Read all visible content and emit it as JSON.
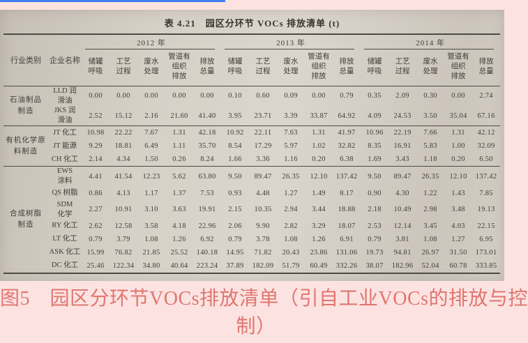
{
  "page": {
    "background_color": "#fce3e2",
    "accent_line_color": "#4080f0",
    "caption": {
      "line1": "图5　园区分环节VOCs排放清单（引自工业VOCs的排放与控",
      "line2": "制）",
      "color": "#e0766f"
    }
  },
  "table": {
    "title": "表 4.21　园区分环节 VOCs 排放清单 (t)",
    "col_industry": "行业类别",
    "col_company": "企业名称",
    "years": [
      "2012 年",
      "2013 年",
      "2014 年"
    ],
    "subheaders": [
      "储罐\n呼吸",
      "工艺\n过程",
      "废水\n处理",
      "管道有\n组织\n排放",
      "排放\n总量"
    ],
    "groups": [
      {
        "industry": "石油制品\n制造",
        "rows": [
          {
            "name": "LLD 润\n滑油",
            "values": [
              "0.00",
              "0.00",
              "0.00",
              "0.00",
              "0.00",
              "0.10",
              "0.60",
              "0.09",
              "0.00",
              "0.79",
              "0.35",
              "2.09",
              "0.30",
              "0.00",
              "2.74"
            ]
          },
          {
            "name": "JKS 润\n滑油",
            "values": [
              "2.52",
              "15.12",
              "2.16",
              "21.60",
              "41.40",
              "3.95",
              "23.71",
              "3.39",
              "33.87",
              "64.92",
              "4.09",
              "24.53",
              "3.50",
              "35.04",
              "67.16"
            ]
          }
        ]
      },
      {
        "industry": "有机化学原\n料制造",
        "rows": [
          {
            "name": "JT 化工",
            "values": [
              "10.98",
              "22.22",
              "7.67",
              "1.31",
              "42.18",
              "10.92",
              "22.11",
              "7.63",
              "1.31",
              "41.97",
              "10.96",
              "22.19",
              "7.66",
              "1.31",
              "42.12"
            ]
          },
          {
            "name": "JT 能源",
            "values": [
              "9.29",
              "18.81",
              "6.49",
              "1.11",
              "35.70",
              "8.54",
              "17.29",
              "5.97",
              "1.02",
              "32.82",
              "8.35",
              "16.91",
              "5.83",
              "1.00",
              "32.09"
            ]
          },
          {
            "name": "CH 化工",
            "values": [
              "2.14",
              "4.34",
              "1.50",
              "0.26",
              "8.24",
              "1.66",
              "3.36",
              "1.16",
              "0.20",
              "6.38",
              "1.69",
              "3.43",
              "1.18",
              "0.20",
              "6.50"
            ]
          }
        ]
      },
      {
        "industry": "合成树脂\n制造",
        "rows": [
          {
            "name": "EWS\n涂料",
            "values": [
              "4.41",
              "41.54",
              "12.23",
              "5.62",
              "63.80",
              "9.50",
              "89.47",
              "26.35",
              "12.10",
              "137.42",
              "9.50",
              "89.47",
              "26.35",
              "12.10",
              "137.42"
            ]
          },
          {
            "name": "QS 树脂",
            "values": [
              "0.86",
              "4.13",
              "1.17",
              "1.37",
              "7.53",
              "0.93",
              "4.48",
              "1.27",
              "1.49",
              "8.17",
              "0.90",
              "4.30",
              "1.22",
              "1.43",
              "7.85"
            ]
          },
          {
            "name": "SDM\n化学",
            "values": [
              "2.27",
              "10.91",
              "3.10",
              "3.63",
              "19.91",
              "2.15",
              "10.35",
              "2.94",
              "3.44",
              "18.88",
              "2.18",
              "10.49",
              "2.98",
              "3.48",
              "19.13"
            ]
          },
          {
            "name": "RY 化工",
            "values": [
              "2.62",
              "12.58",
              "3.58",
              "4.18",
              "22.96",
              "2.06",
              "9.90",
              "2.82",
              "3.29",
              "18.07",
              "2.53",
              "12.14",
              "3.45",
              "4.03",
              "22.15"
            ]
          },
          {
            "name": "LT 化工",
            "values": [
              "0.79",
              "3.79",
              "1.08",
              "1.26",
              "6.92",
              "0.79",
              "3.78",
              "1.08",
              "1.26",
              "6.91",
              "0.79",
              "3.81",
              "1.08",
              "1.27",
              "6.95"
            ]
          },
          {
            "name": "ASK 化工",
            "values": [
              "15.99",
              "76.82",
              "21.85",
              "25.52",
              "140.18",
              "14.95",
              "71.82",
              "20.43",
              "23.86",
              "131.06",
              "19.73",
              "94.81",
              "26.97",
              "31.50",
              "173.01"
            ]
          },
          {
            "name": "DC 化工",
            "values": [
              "25.46",
              "122.34",
              "34.80",
              "40.64",
              "223.24",
              "37.89",
              "182.09",
              "51.79",
              "60.49",
              "332.26",
              "38.07",
              "182.96",
              "52.04",
              "60.78",
              "333.85"
            ]
          }
        ]
      }
    ]
  }
}
